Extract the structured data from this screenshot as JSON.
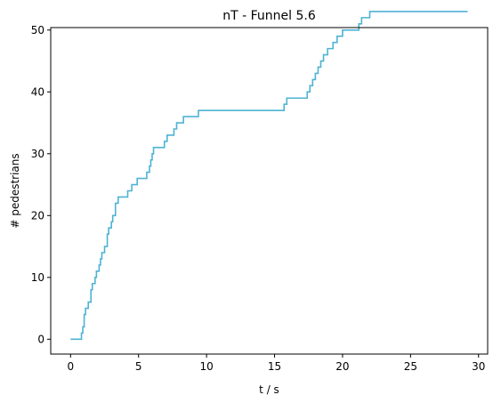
{
  "chart_data": {
    "type": "line",
    "title": "nT - Funnel 5.6",
    "xlabel": "t / s",
    "ylabel": "# pedestrians",
    "xlim": [
      -1.46,
      30.67
    ],
    "ylim": [
      -2.4,
      50.4
    ],
    "xticks": [
      0,
      5,
      10,
      15,
      20,
      25,
      30
    ],
    "yticks": [
      0,
      10,
      20,
      30,
      40,
      50
    ],
    "grid": false,
    "line_color": "#4eb3d3",
    "step": "post",
    "series": [
      {
        "x": [
          0,
          0.8,
          0.9,
          1.0,
          1.1,
          1.3,
          1.5,
          1.6,
          1.8,
          1.9,
          2.1,
          2.2,
          2.3,
          2.5,
          2.7,
          2.8,
          3.0,
          3.1,
          3.3,
          3.5,
          4.2,
          4.5,
          4.9,
          5.6,
          5.8,
          5.9,
          6.0,
          6.1,
          6.9,
          7.1,
          7.6,
          7.8,
          8.3,
          9.4,
          15.7,
          15.9,
          17.4,
          17.6,
          17.8,
          18.0,
          18.2,
          18.4,
          18.6,
          18.9,
          19.3,
          19.6,
          20.0,
          21.2,
          21.4,
          22.0,
          29.2
        ],
        "y": [
          0,
          1,
          2,
          4,
          5,
          6,
          8,
          9,
          10,
          11,
          12,
          13,
          14,
          15,
          17,
          18,
          19,
          20,
          22,
          23,
          24,
          25,
          26,
          27,
          28,
          29,
          30,
          31,
          32,
          33,
          34,
          35,
          36,
          37,
          38,
          39,
          40,
          41,
          42,
          43,
          44,
          45,
          46,
          47,
          48,
          49,
          50,
          51,
          52,
          53,
          53
        ]
      }
    ]
  }
}
